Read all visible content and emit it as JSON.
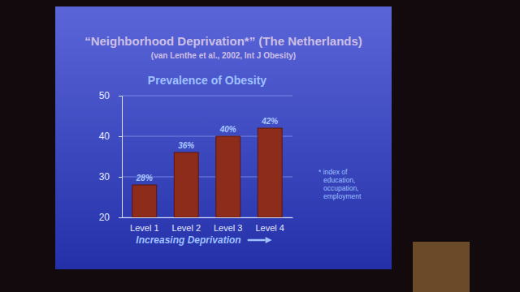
{
  "chart_data": {
    "type": "bar",
    "title": "“Neighborhood Deprivation*” (The Netherlands)",
    "subtitle": "(van Lenthe et al., 2002, Int J Obesity)",
    "chart_title": "Prevalence of Obesity",
    "x_label": "Increasing Deprivation",
    "annotation": [
      "* index of",
      "education,",
      "occupation,",
      "employment"
    ],
    "categories": [
      "Level 1",
      "Level 2",
      "Level 3",
      "Level 4"
    ],
    "values": [
      28,
      36,
      40,
      42
    ],
    "value_labels": [
      "28%",
      "36%",
      "40%",
      "42%"
    ],
    "color": "#8e2c1c",
    "ylim": [
      20,
      50
    ],
    "yticks": [
      20,
      30,
      40,
      50
    ],
    "grid": true,
    "data_labels": true
  }
}
